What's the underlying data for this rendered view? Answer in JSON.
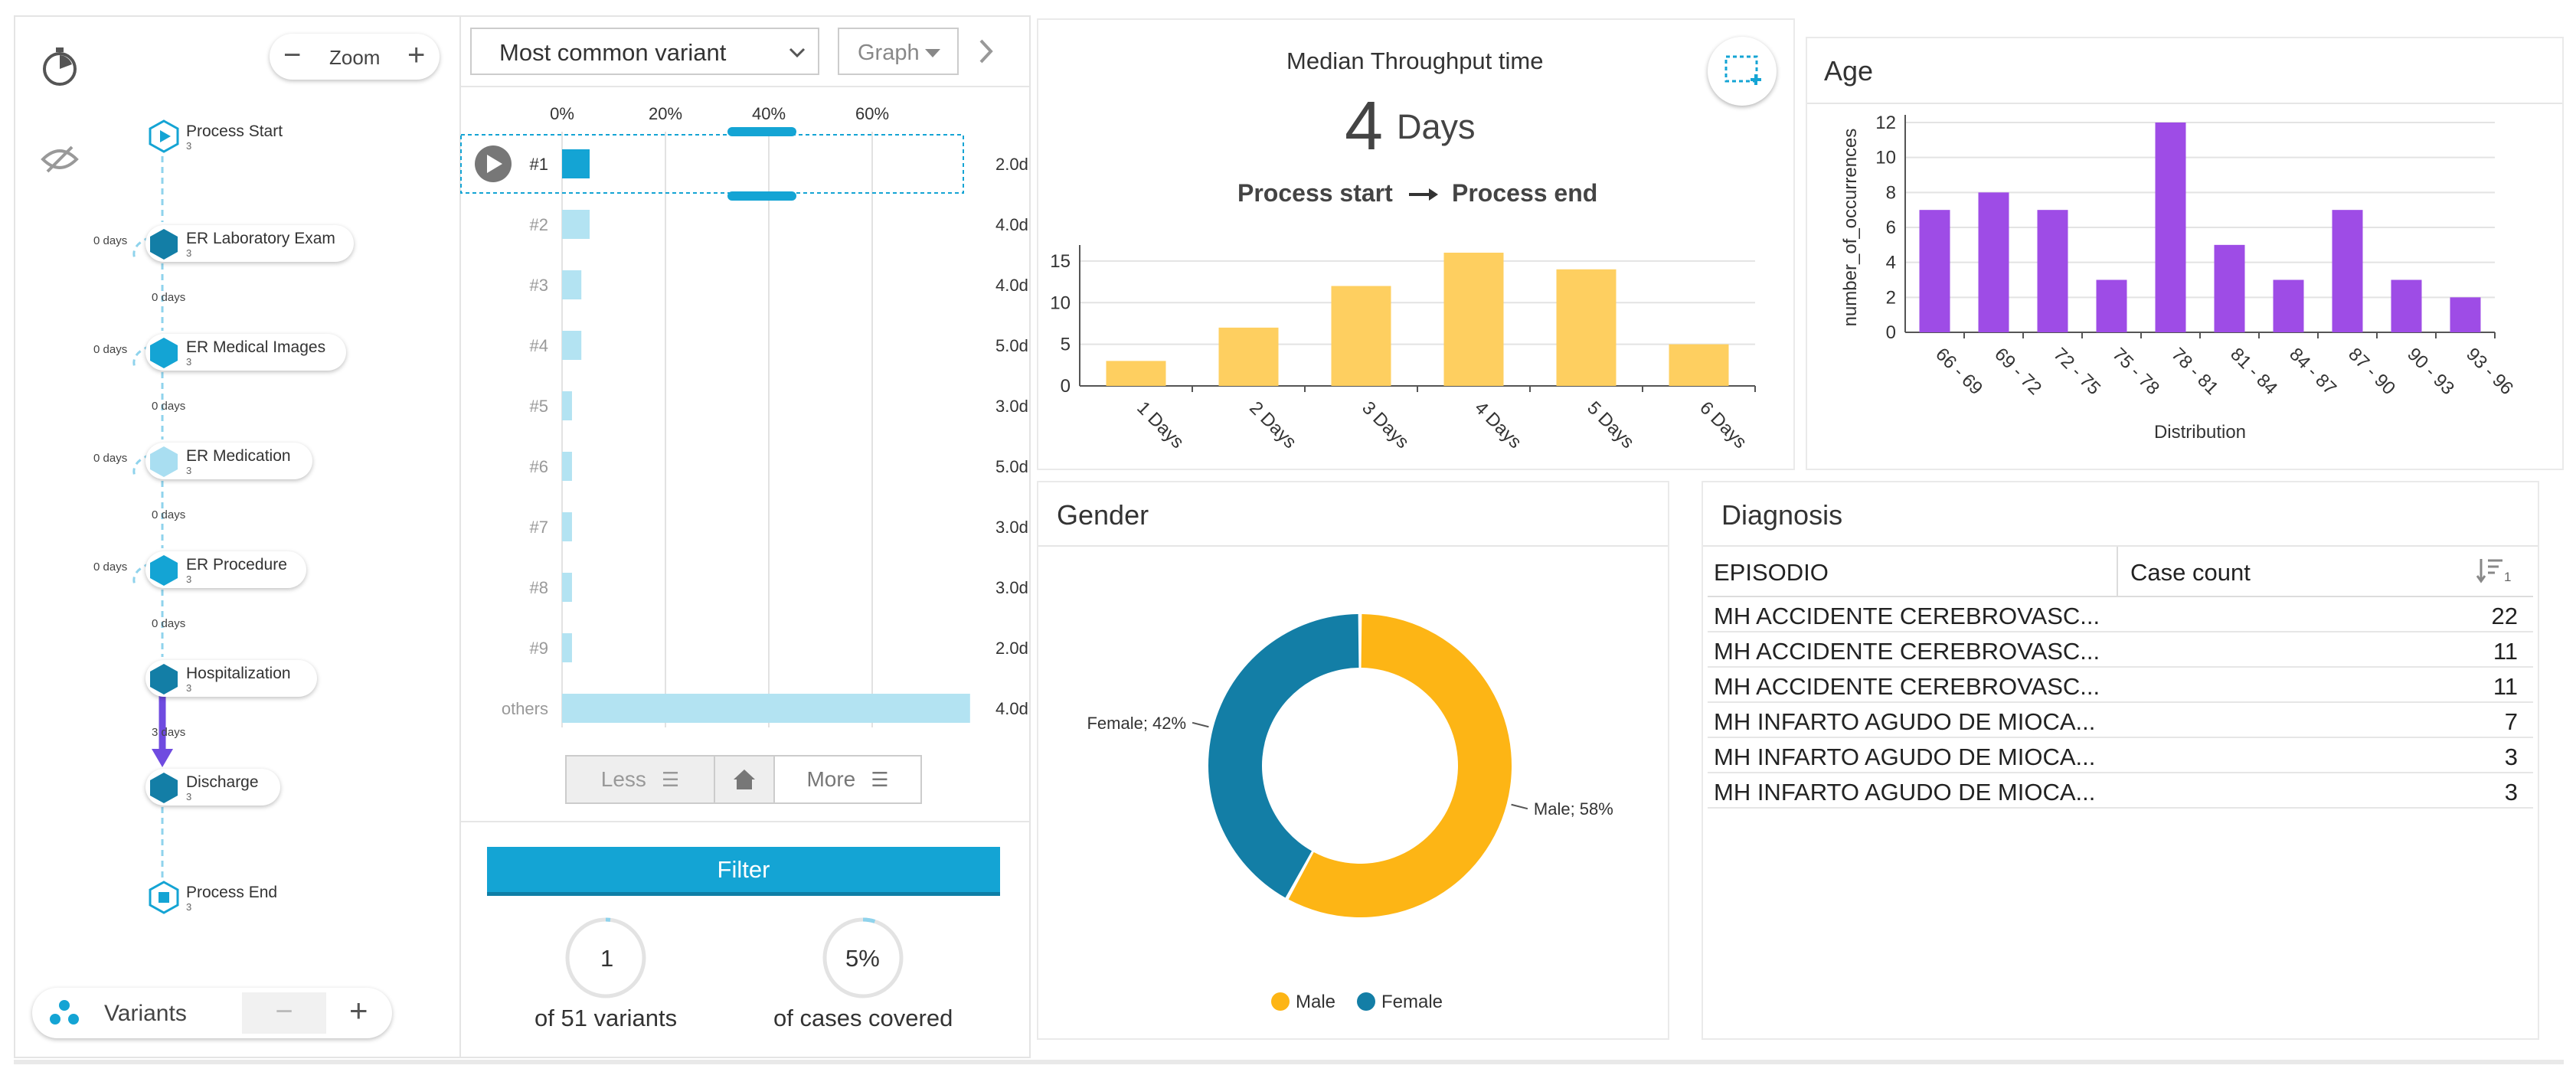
{
  "left": {
    "zoom_label": "Zoom",
    "variants_label": "Variants",
    "nodes": [
      {
        "label": "Process Start",
        "count": "3"
      },
      {
        "label": "ER Laboratory Exam",
        "count": "3"
      },
      {
        "label": "ER Medical Images",
        "count": "3"
      },
      {
        "label": "ER Medication",
        "count": "3"
      },
      {
        "label": "ER Procedure",
        "count": "3"
      },
      {
        "label": "Hospitalization",
        "count": "3"
      },
      {
        "label": "Discharge",
        "count": "3"
      },
      {
        "label": "Process End",
        "count": "3"
      }
    ],
    "edge_labels": [
      "0 days",
      "0 days",
      "0 days",
      "0 days",
      "3 days"
    ],
    "loop_labels": [
      "0 days",
      "0 days",
      "0 days",
      "0 days"
    ]
  },
  "variants": {
    "dropdown_value": "Most common variant",
    "view_value": "Graph",
    "axis_ticks": [
      "0%",
      "20%",
      "40%",
      "60%"
    ],
    "rows": [
      {
        "label": "#1",
        "share": 0.05,
        "duration": "2.0d",
        "active": true
      },
      {
        "label": "#2",
        "share": 0.05,
        "duration": "4.0d"
      },
      {
        "label": "#3",
        "share": 0.035,
        "duration": "4.0d"
      },
      {
        "label": "#4",
        "share": 0.035,
        "duration": "5.0d"
      },
      {
        "label": "#5",
        "share": 0.018,
        "duration": "3.0d"
      },
      {
        "label": "#6",
        "share": 0.018,
        "duration": "5.0d"
      },
      {
        "label": "#7",
        "share": 0.018,
        "duration": "3.0d"
      },
      {
        "label": "#8",
        "share": 0.018,
        "duration": "3.0d"
      },
      {
        "label": "#9",
        "share": 0.018,
        "duration": "2.0d"
      },
      {
        "label": "others",
        "share": 0.74,
        "duration": "4.0d"
      }
    ],
    "less_label": "Less",
    "more_label": "More",
    "filter_label": "Filter",
    "variants_count": "1",
    "variants_caption": "of 51 variants",
    "cases_percent": "5%",
    "cases_caption": "of cases covered"
  },
  "throughput": {
    "title": "Median Throughput time",
    "value": "4",
    "unit": "Days",
    "from": "Process start",
    "to": "Process end"
  },
  "age": {
    "title": "Age"
  },
  "gender": {
    "title": "Gender"
  },
  "diagnosis": {
    "title": "Diagnosis",
    "col1": "EPISODIO",
    "col2": "Case count",
    "sort_badge": "1",
    "rows": [
      {
        "name": "MH ACCIDENTE CEREBROVASC...",
        "count": "22"
      },
      {
        "name": "MH ACCIDENTE CEREBROVASC...",
        "count": "11"
      },
      {
        "name": "MH ACCIDENTE CEREBROVASC...",
        "count": "11"
      },
      {
        "name": "MH INFARTO AGUDO DE MIOCA...",
        "count": "7"
      },
      {
        "name": "MH INFARTO AGUDO DE MIOCA...",
        "count": "3"
      },
      {
        "name": "MH INFARTO AGUDO DE MIOCA...",
        "count": "3"
      }
    ]
  },
  "colors": {
    "yellow": "#fecf60",
    "purple": "#9e4ce6",
    "blue": "#14a4d4",
    "teal": "#137ea6",
    "orange": "#fdb515"
  },
  "chart_data": [
    {
      "type": "bar",
      "categories": [
        "1 Days",
        "2 Days",
        "3 Days",
        "4 Days",
        "5 Days",
        "6 Days"
      ],
      "values": [
        3,
        7,
        12,
        16,
        14,
        5
      ],
      "title": "",
      "xlabel": "",
      "ylabel": "",
      "ylim": [
        0,
        16
      ],
      "yticks": [
        "0",
        "5",
        "10",
        "15"
      ]
    },
    {
      "type": "bar",
      "categories": [
        "66 - 69",
        "69 - 72",
        "72 - 75",
        "75 - 78",
        "78 - 81",
        "81 - 84",
        "84 - 87",
        "87 - 90",
        "90 - 93",
        "93 - 96"
      ],
      "values": [
        7,
        8,
        7,
        3,
        12,
        5,
        3,
        7,
        3,
        2
      ],
      "title": "Age",
      "xlabel": "Distribution",
      "ylabel": "number_of_occurrences",
      "ylim": [
        0,
        12
      ],
      "yticks": [
        "0",
        "2",
        "4",
        "6",
        "8",
        "10",
        "12"
      ]
    },
    {
      "type": "pie",
      "series": [
        {
          "name": "Male",
          "value": 58,
          "label": "Male; 58%"
        },
        {
          "name": "Female",
          "value": 42,
          "label": "Female; 42%"
        }
      ],
      "title": "Gender",
      "legend": [
        "Male",
        "Female"
      ]
    }
  ]
}
